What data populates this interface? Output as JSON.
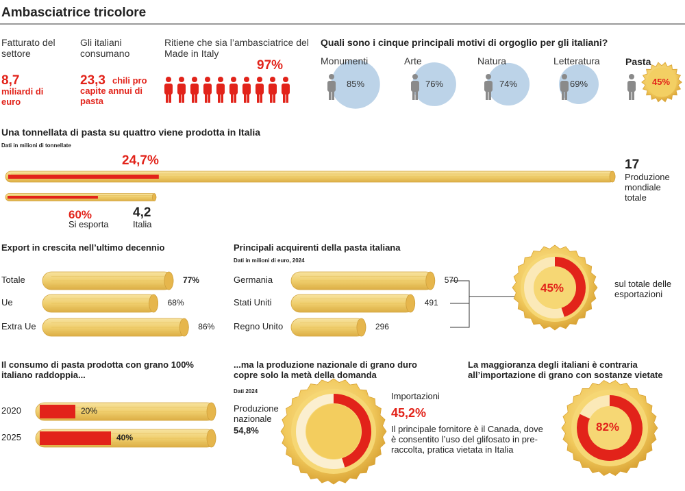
{
  "title": "Ambasciatrice tricolore",
  "stats": [
    {
      "label": "Fatturato del settore",
      "value": "8,7",
      "unit": "miliardi di euro"
    },
    {
      "label": "Gli italiani consumano",
      "value": "23,3",
      "unit": "chili pro capite annui di pasta"
    },
    {
      "label": "Ritiene che sia l’ambasciatrice del Made in Italy",
      "value": 97,
      "value_label": "97%"
    }
  ],
  "pride": {
    "title": "Quali sono i cinque principali motivi di orgoglio per gli italiani?",
    "items": [
      {
        "name": "Monumenti",
        "value": 85,
        "value_label": "85%"
      },
      {
        "name": "Arte",
        "value": 76,
        "value_label": "76%"
      },
      {
        "name": "Natura",
        "value": 74,
        "value_label": "74%"
      },
      {
        "name": "Letteratura",
        "value": 69,
        "value_label": "69%"
      }
    ],
    "pasta": {
      "name": "Pasta",
      "value": 45,
      "value_label": "45%"
    }
  },
  "production": {
    "title": "Una tonnellata di pasta su quattro viene prodotta in Italia",
    "subtitle": "Dati in milioni di tonnellate",
    "world": {
      "value": 17,
      "label": "Produzione mondiale totale"
    },
    "italy": {
      "value": 4.2,
      "value_label": "4,2",
      "label": "Italia"
    },
    "italy_share": {
      "value": 24.7,
      "value_label": "24,7%"
    },
    "export_share": {
      "value": 60,
      "value_label": "60%",
      "label": "Si esporta"
    }
  },
  "export_growth": {
    "title": "Export in crescita nell’ultimo decennio",
    "rows": [
      {
        "name": "Totale",
        "value": 77,
        "value_label": "77%"
      },
      {
        "name": "Ue",
        "value": 68,
        "value_label": "68%"
      },
      {
        "name": "Extra Ue",
        "value": 86,
        "value_label": "86%"
      }
    ]
  },
  "buyers": {
    "title": "Principali acquirenti della pasta italiana",
    "subtitle": "Dati in milioni di euro, 2024",
    "rows": [
      {
        "name": "Germania",
        "value": 570
      },
      {
        "name": "Stati Uniti",
        "value": 491
      },
      {
        "name": "Regno Unito",
        "value": 296
      }
    ],
    "share": {
      "value": 45,
      "value_label": "45%",
      "label": "sul totale delle esportazioni"
    }
  },
  "consumption": {
    "title": "Il consumo di pasta prodotta con grano 100% italiano raddoppia...",
    "rows": [
      {
        "year": "2020",
        "value": 20,
        "value_label": "20%"
      },
      {
        "year": "2025",
        "value": 40,
        "value_label": "40%"
      }
    ]
  },
  "wheat": {
    "title": "...ma la produzione nazionale di grano duro copre solo la metà della domanda",
    "subtitle": "Dati 2024",
    "domestic": {
      "label": "Produzione nazionale",
      "value": 54.8,
      "value_label": "54,8%"
    },
    "imports": {
      "label": "Importazioni",
      "value": 45.2,
      "value_label": "45,2%"
    },
    "note": "Il principale fornitore è il Canada, dove è consentito l’uso del glifosato in pre-raccolta, pratica vietata in Italia"
  },
  "opposition": {
    "title": "La maggioranza degli italiani è contraria all’importazione di grano con sostanze vietate",
    "value": 82,
    "value_label": "82%"
  }
}
